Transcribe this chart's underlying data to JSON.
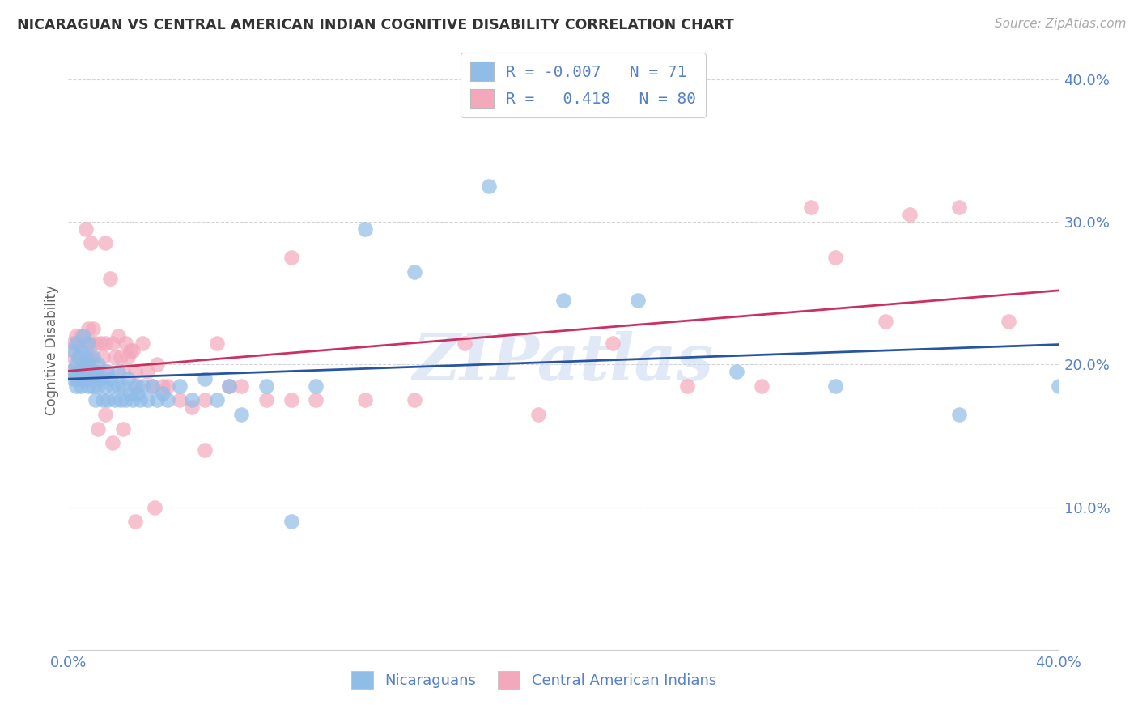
{
  "title": "NICARAGUAN VS CENTRAL AMERICAN INDIAN COGNITIVE DISABILITY CORRELATION CHART",
  "source": "Source: ZipAtlas.com",
  "ylabel": "Cognitive Disability",
  "x_min": 0.0,
  "x_max": 0.4,
  "y_min": 0.0,
  "y_max": 0.42,
  "x_ticks": [
    0.0,
    0.05,
    0.1,
    0.15,
    0.2,
    0.25,
    0.3,
    0.35,
    0.4
  ],
  "x_tick_labels_show": [
    "0.0%",
    "",
    "",
    "",
    "",
    "",
    "",
    "",
    "40.0%"
  ],
  "y_ticks": [
    0.0,
    0.1,
    0.2,
    0.3,
    0.4
  ],
  "y_tick_labels": [
    "",
    "10.0%",
    "20.0%",
    "30.0%",
    "40.0%"
  ],
  "blue_color": "#90BCE8",
  "pink_color": "#F4A8BC",
  "blue_line_color": "#2855A0",
  "pink_line_color": "#CC3060",
  "text_color": "#5580CC",
  "grid_color": "#d0d0d0",
  "watermark": "ZIPatlas",
  "R_blue": -0.007,
  "N_blue": 71,
  "R_pink": 0.418,
  "N_pink": 80,
  "blue_x": [
    0.001,
    0.002,
    0.002,
    0.003,
    0.003,
    0.003,
    0.004,
    0.004,
    0.004,
    0.005,
    0.005,
    0.005,
    0.006,
    0.006,
    0.006,
    0.007,
    0.007,
    0.008,
    0.008,
    0.008,
    0.009,
    0.009,
    0.01,
    0.01,
    0.011,
    0.011,
    0.012,
    0.012,
    0.013,
    0.014,
    0.015,
    0.015,
    0.016,
    0.017,
    0.018,
    0.019,
    0.02,
    0.02,
    0.021,
    0.022,
    0.023,
    0.024,
    0.025,
    0.026,
    0.027,
    0.028,
    0.029,
    0.03,
    0.032,
    0.034,
    0.036,
    0.038,
    0.04,
    0.045,
    0.05,
    0.055,
    0.06,
    0.065,
    0.07,
    0.08,
    0.09,
    0.1,
    0.12,
    0.14,
    0.17,
    0.2,
    0.23,
    0.27,
    0.31,
    0.36,
    0.4
  ],
  "blue_y": [
    0.195,
    0.19,
    0.21,
    0.185,
    0.2,
    0.215,
    0.19,
    0.205,
    0.195,
    0.195,
    0.21,
    0.185,
    0.2,
    0.22,
    0.19,
    0.195,
    0.205,
    0.185,
    0.2,
    0.215,
    0.19,
    0.195,
    0.185,
    0.205,
    0.175,
    0.19,
    0.2,
    0.185,
    0.19,
    0.175,
    0.185,
    0.195,
    0.175,
    0.19,
    0.185,
    0.175,
    0.185,
    0.195,
    0.175,
    0.185,
    0.175,
    0.19,
    0.18,
    0.175,
    0.185,
    0.18,
    0.175,
    0.185,
    0.175,
    0.185,
    0.175,
    0.18,
    0.175,
    0.185,
    0.175,
    0.19,
    0.175,
    0.185,
    0.165,
    0.185,
    0.09,
    0.185,
    0.295,
    0.265,
    0.325,
    0.245,
    0.245,
    0.195,
    0.185,
    0.165,
    0.185
  ],
  "pink_x": [
    0.001,
    0.002,
    0.002,
    0.003,
    0.003,
    0.004,
    0.004,
    0.004,
    0.005,
    0.005,
    0.005,
    0.006,
    0.006,
    0.007,
    0.007,
    0.008,
    0.008,
    0.008,
    0.009,
    0.009,
    0.01,
    0.01,
    0.011,
    0.011,
    0.012,
    0.013,
    0.014,
    0.015,
    0.015,
    0.016,
    0.017,
    0.018,
    0.019,
    0.02,
    0.021,
    0.022,
    0.023,
    0.024,
    0.025,
    0.026,
    0.027,
    0.028,
    0.03,
    0.032,
    0.034,
    0.036,
    0.038,
    0.04,
    0.045,
    0.05,
    0.055,
    0.06,
    0.065,
    0.07,
    0.08,
    0.09,
    0.1,
    0.12,
    0.14,
    0.16,
    0.19,
    0.22,
    0.25,
    0.28,
    0.3,
    0.31,
    0.33,
    0.34,
    0.36,
    0.38,
    0.007,
    0.009,
    0.012,
    0.015,
    0.018,
    0.022,
    0.027,
    0.035,
    0.055,
    0.09
  ],
  "pink_y": [
    0.195,
    0.205,
    0.215,
    0.19,
    0.22,
    0.195,
    0.205,
    0.215,
    0.2,
    0.195,
    0.22,
    0.2,
    0.195,
    0.215,
    0.195,
    0.205,
    0.225,
    0.19,
    0.205,
    0.215,
    0.195,
    0.225,
    0.195,
    0.215,
    0.195,
    0.215,
    0.205,
    0.285,
    0.215,
    0.195,
    0.26,
    0.215,
    0.205,
    0.22,
    0.205,
    0.195,
    0.215,
    0.205,
    0.21,
    0.21,
    0.195,
    0.185,
    0.215,
    0.195,
    0.185,
    0.2,
    0.185,
    0.185,
    0.175,
    0.17,
    0.175,
    0.215,
    0.185,
    0.185,
    0.175,
    0.175,
    0.175,
    0.175,
    0.175,
    0.215,
    0.165,
    0.215,
    0.185,
    0.185,
    0.31,
    0.275,
    0.23,
    0.305,
    0.31,
    0.23,
    0.295,
    0.285,
    0.155,
    0.165,
    0.145,
    0.155,
    0.09,
    0.1,
    0.14,
    0.275
  ]
}
